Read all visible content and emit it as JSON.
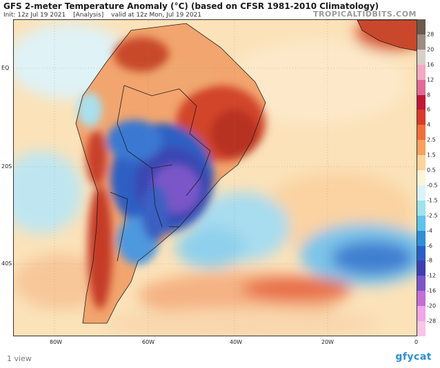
{
  "header": {
    "title": "GFS 2-meter Temperature Anomaly (°C) (based on CFSR 1981-2010 Climatology)",
    "init": "Init: 12z Jul 19 2021",
    "analysis": "[Analysis]",
    "valid": "valid at 12z Mon, Jul 19 2021",
    "brand": "TROPICALTIDBITS.COM"
  },
  "axes": {
    "lat_labels": [
      "EQ",
      "20S",
      "40S"
    ],
    "lon_labels": [
      "80W",
      "60W",
      "40W",
      "20W",
      "0"
    ]
  },
  "colorbar": {
    "labels": [
      "28",
      "20",
      "16",
      "12",
      "8",
      "6",
      "4",
      "2.5",
      "1.5",
      "0.5",
      "-0.5",
      "-1.5",
      "-2.5",
      "-4",
      "-6",
      "-8",
      "-12",
      "-16",
      "-20",
      "-28"
    ],
    "colors": [
      "#6b5a4e",
      "#9b8b80",
      "#d7cfc9",
      "#f3a9c4",
      "#e06a96",
      "#c0163a",
      "#d93a2a",
      "#ee6f3c",
      "#f6a25e",
      "#fbd49a",
      "#fff4d8",
      "#d9f4f8",
      "#9fe3ee",
      "#5dc4ea",
      "#2d8fd8",
      "#2a5fc6",
      "#3d3fb0",
      "#7b55c9",
      "#c26fd8",
      "#f0a6e8",
      "#f7c6e4"
    ]
  },
  "footer": {
    "views": "1 view",
    "logo": "gfycat"
  }
}
